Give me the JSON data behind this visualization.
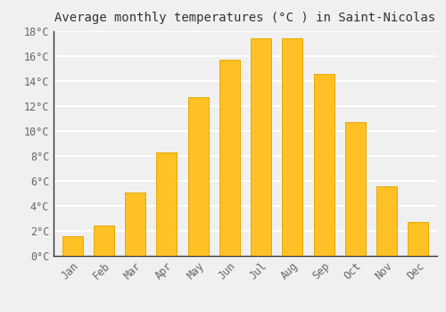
{
  "months": [
    "Jan",
    "Feb",
    "Mar",
    "Apr",
    "May",
    "Jun",
    "Jul",
    "Aug",
    "Sep",
    "Oct",
    "Nov",
    "Dec"
  ],
  "values": [
    1.6,
    2.4,
    5.1,
    8.3,
    12.7,
    15.7,
    17.4,
    17.4,
    14.6,
    10.7,
    5.6,
    2.7
  ],
  "bar_color": "#FFC125",
  "bar_edge_color": "#E8A800",
  "title": "Average monthly temperatures (°C ) in Saint-Nicolas",
  "ylim": [
    0,
    18
  ],
  "ytick_values": [
    0,
    2,
    4,
    6,
    8,
    10,
    12,
    14,
    16,
    18
  ],
  "ytick_labels": [
    "0°C",
    "2°C",
    "4°C",
    "6°C",
    "8°C",
    "10°C",
    "12°C",
    "14°C",
    "16°C",
    "18°C"
  ],
  "background_color": "#F0F0F0",
  "grid_color": "#FFFFFF",
  "title_fontsize": 10,
  "tick_fontsize": 8.5,
  "bar_width": 0.65
}
